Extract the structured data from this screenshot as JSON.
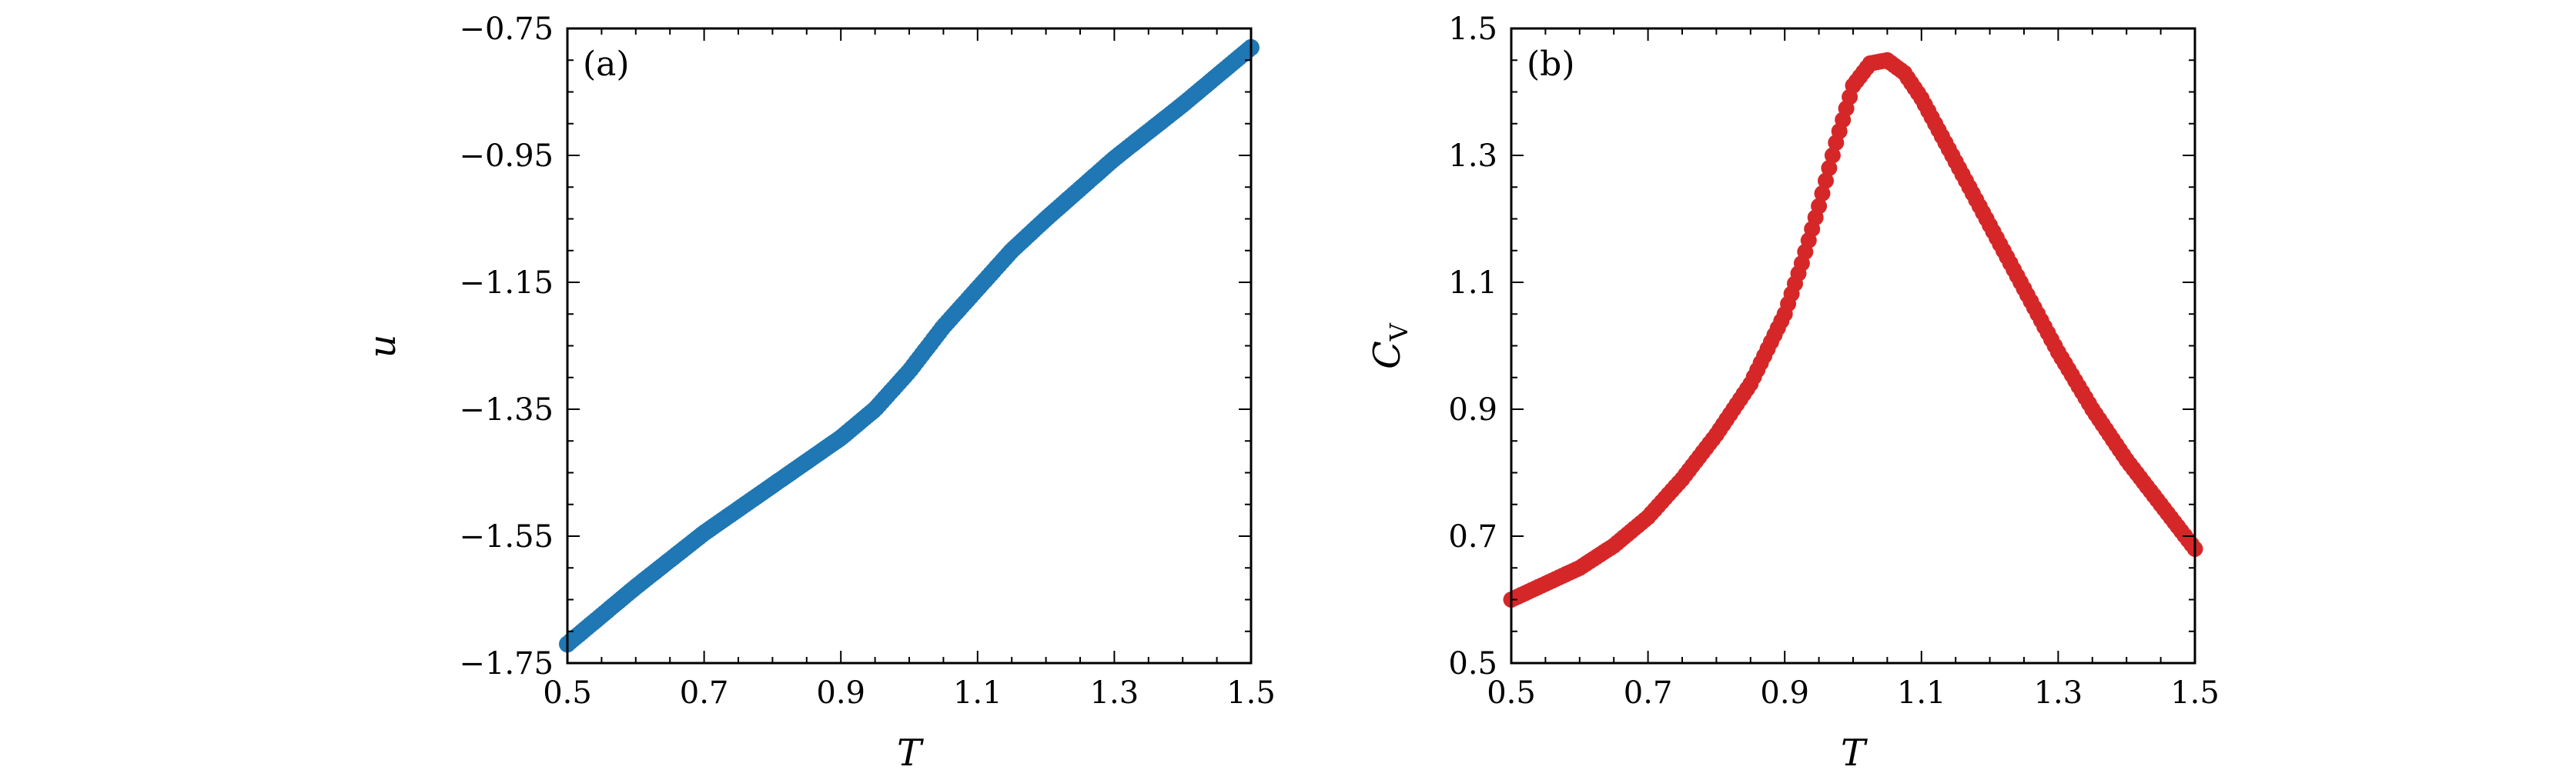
{
  "colors": {
    "series_a": "#1f77b4",
    "series_b": "#d62728",
    "axis": "#000000"
  },
  "chart_data": [
    {
      "type": "scatter",
      "panel_label": "(a)",
      "xlabel": "T",
      "ylabel": "u",
      "xlim": [
        0.5,
        1.5
      ],
      "ylim": [
        -1.75,
        -0.75
      ],
      "xticks": [
        "0.5",
        "0.7",
        "0.9",
        "1.1",
        "1.3",
        "1.5"
      ],
      "yticks": [
        "−1.75",
        "−1.55",
        "−1.35",
        "−1.15",
        "−0.95",
        "−0.75"
      ],
      "grid": false,
      "series": [
        {
          "x": [
            0.5,
            0.6,
            0.7,
            0.8,
            0.9,
            0.95,
            1.0,
            1.05,
            1.1,
            1.15,
            1.2,
            1.3,
            1.4,
            1.5
          ],
          "y": [
            -1.72,
            -1.63,
            -1.545,
            -1.47,
            -1.395,
            -1.35,
            -1.29,
            -1.22,
            -1.16,
            -1.1,
            -1.05,
            -0.955,
            -0.87,
            -0.78
          ]
        }
      ]
    },
    {
      "type": "scatter",
      "panel_label": "(b)",
      "xlabel": "T",
      "ylabel": "C",
      "ylabel_sub": "V",
      "xlim": [
        0.5,
        1.5
      ],
      "ylim": [
        0.5,
        1.5
      ],
      "xticks": [
        "0.5",
        "0.7",
        "0.9",
        "1.1",
        "1.3",
        "1.5"
      ],
      "yticks": [
        "0.5",
        "0.7",
        "0.9",
        "1.1",
        "1.3",
        "1.5"
      ],
      "grid": false,
      "series": [
        {
          "x": [
            0.5,
            0.55,
            0.6,
            0.65,
            0.7,
            0.75,
            0.8,
            0.85,
            0.9,
            0.925,
            0.95,
            0.975,
            1.0,
            1.025,
            1.05,
            1.075,
            1.1,
            1.125,
            1.15,
            1.2,
            1.25,
            1.3,
            1.35,
            1.4,
            1.45,
            1.5
          ],
          "y": [
            0.6,
            0.625,
            0.65,
            0.685,
            0.73,
            0.79,
            0.86,
            0.94,
            1.05,
            1.13,
            1.22,
            1.32,
            1.41,
            1.445,
            1.45,
            1.43,
            1.39,
            1.34,
            1.29,
            1.19,
            1.09,
            0.99,
            0.9,
            0.82,
            0.75,
            0.68
          ]
        }
      ]
    }
  ]
}
